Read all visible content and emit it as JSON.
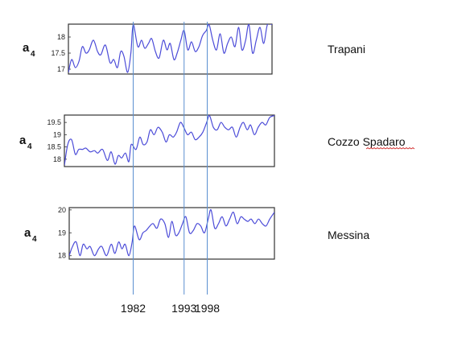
{
  "chart_data": [
    {
      "type": "line",
      "ylabel": "a",
      "ylabel_sub": "4",
      "station": "Trapani",
      "ylim": [
        16.85,
        18.4
      ],
      "yticks": [
        "18",
        "17.5",
        "17"
      ],
      "ytick_values": [
        18,
        17.5,
        17
      ],
      "xlim": [
        1968,
        2012
      ],
      "x": [
        1968,
        1968.7,
        1969.5,
        1970.3,
        1971,
        1971.8,
        1972.5,
        1973.4,
        1974.3,
        1975,
        1976,
        1977,
        1977.8,
        1978.6,
        1979.3,
        1980,
        1980.8,
        1981.5,
        1982,
        1983,
        1983.8,
        1984.5,
        1985.3,
        1986,
        1986.8,
        1987.6,
        1988.5,
        1989.3,
        1990,
        1990.8,
        1991.5,
        1992.3,
        1993,
        1993.8,
        1994.6,
        1995.4,
        1996.2,
        1997,
        1997.8,
        1998.4,
        1999.2,
        2000,
        2000.8,
        2001.6,
        2002.4,
        2003.2,
        2004,
        2004.8,
        2005.5,
        2006.3,
        2007,
        2007.8,
        2008.6,
        2009.4,
        2010.2,
        2011,
        2012
      ],
      "y": [
        16.9,
        17.3,
        17.05,
        17.25,
        17.7,
        17.5,
        17.6,
        17.9,
        17.55,
        17.45,
        17.75,
        17.2,
        17.3,
        17.05,
        17.55,
        17.4,
        16.9,
        17.5,
        18.4,
        17.7,
        17.9,
        17.65,
        17.8,
        17.95,
        17.55,
        17.35,
        17.9,
        17.6,
        17.8,
        17.3,
        17.5,
        17.9,
        18.2,
        17.6,
        17.85,
        17.55,
        17.7,
        18.05,
        18.2,
        18.4,
        17.9,
        17.6,
        18.1,
        17.5,
        17.8,
        18.0,
        17.7,
        18.3,
        17.6,
        17.9,
        18.4,
        17.5,
        17.9,
        18.3,
        17.8,
        18.4,
        18.4
      ]
    },
    {
      "type": "line",
      "ylabel": "a",
      "ylabel_sub": "4",
      "station": "Cozzo Spadaro",
      "ylim": [
        17.7,
        19.8
      ],
      "yticks": [
        "19.5",
        "19",
        "18.5",
        "18"
      ],
      "ytick_values": [
        19.5,
        19,
        18.5,
        18
      ],
      "xlim": [
        1968,
        2012
      ],
      "x": [
        1968,
        1968.7,
        1969.5,
        1970.3,
        1971,
        1971.8,
        1972.5,
        1973.4,
        1974.3,
        1975,
        1976,
        1977,
        1977.8,
        1978.6,
        1979.3,
        1980,
        1980.8,
        1981.5,
        1982,
        1983,
        1983.8,
        1984.5,
        1985.3,
        1986,
        1986.8,
        1987.6,
        1988.5,
        1989.3,
        1990,
        1990.8,
        1991.5,
        1992.3,
        1993,
        1993.8,
        1994.6,
        1995.4,
        1996.2,
        1997,
        1997.8,
        1998.4,
        1999.2,
        2000,
        2000.8,
        2001.6,
        2002.4,
        2003.2,
        2004,
        2004.8,
        2005.5,
        2006.3,
        2007,
        2007.8,
        2008.6,
        2009.4,
        2010.2,
        2011,
        2012
      ],
      "y": [
        17.75,
        18.6,
        18.8,
        18.2,
        18.4,
        18.4,
        18.45,
        18.3,
        18.35,
        18.25,
        18.4,
        17.95,
        18.3,
        17.8,
        18.15,
        18.05,
        18.25,
        17.9,
        18.6,
        18.4,
        18.9,
        18.6,
        18.7,
        19.2,
        19.0,
        19.3,
        19.1,
        18.7,
        19.0,
        18.9,
        19.1,
        19.5,
        19.3,
        19.0,
        19.1,
        18.8,
        18.9,
        19.1,
        19.5,
        19.8,
        19.3,
        19.2,
        19.5,
        19.3,
        19.2,
        19.3,
        18.9,
        19.3,
        19.5,
        19.2,
        19.4,
        19.0,
        19.3,
        19.5,
        19.4,
        19.7,
        19.8
      ]
    },
    {
      "type": "line",
      "ylabel": "a",
      "ylabel_sub": "4",
      "station": "Messina",
      "ylim": [
        17.85,
        20.1
      ],
      "yticks": [
        "20",
        "19",
        "18"
      ],
      "ytick_values": [
        20,
        19,
        18
      ],
      "xlim": [
        1968,
        2012
      ],
      "x": [
        1968,
        1968.7,
        1969.5,
        1970.3,
        1971,
        1971.8,
        1972.5,
        1973.4,
        1974.3,
        1975,
        1976,
        1977,
        1977.8,
        1978.6,
        1979.3,
        1980,
        1980.8,
        1981.5,
        1982,
        1983,
        1983.8,
        1984.5,
        1985.3,
        1986,
        1986.8,
        1987.6,
        1988.5,
        1989.3,
        1990,
        1990.8,
        1991.5,
        1992.3,
        1993,
        1993.8,
        1994.6,
        1995.4,
        1996.2,
        1997,
        1997.8,
        1998.4,
        1999.2,
        2000,
        2000.8,
        2001.6,
        2002.4,
        2003.2,
        2004,
        2004.8,
        2005.5,
        2006.3,
        2007,
        2007.8,
        2008.6,
        2009.4,
        2010.2,
        2011,
        2012
      ],
      "y": [
        18.0,
        18.4,
        18.6,
        18.0,
        18.5,
        18.3,
        18.4,
        18.0,
        18.3,
        18.4,
        18.0,
        18.5,
        18.1,
        18.6,
        18.3,
        18.5,
        18.0,
        18.6,
        19.3,
        18.7,
        19.0,
        19.1,
        19.3,
        19.4,
        19.2,
        19.6,
        19.4,
        18.8,
        19.5,
        18.9,
        19.0,
        19.4,
        19.7,
        19.0,
        19.1,
        19.4,
        19.3,
        19.0,
        19.6,
        20.0,
        19.2,
        19.4,
        19.7,
        19.3,
        19.6,
        19.9,
        19.4,
        19.7,
        19.6,
        19.5,
        19.6,
        19.4,
        19.6,
        19.4,
        19.3,
        19.6,
        19.9
      ]
    }
  ],
  "markers": [
    {
      "year": 1982,
      "label": "1982"
    },
    {
      "year": 1993,
      "label": "1993"
    },
    {
      "year": 1998,
      "label": "1998"
    }
  ],
  "colors": {
    "series": "#4b4bd8",
    "marker_lines": "#5b8fd0",
    "spellcheck": "#d12b2b"
  }
}
